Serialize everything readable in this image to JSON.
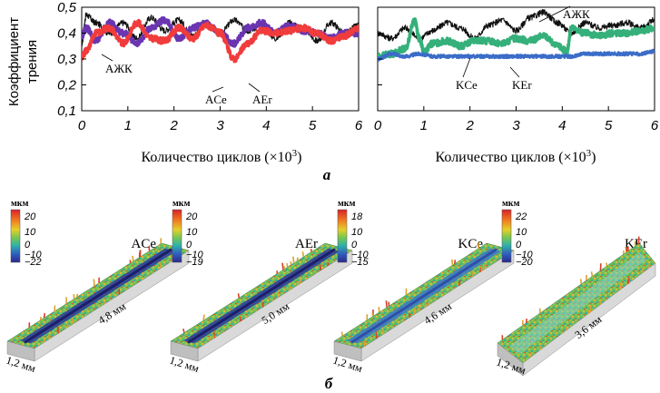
{
  "panel_a": {
    "label": "а",
    "ylabel_line1": "Коэффициент",
    "ylabel_line2": "трения",
    "xlabel": "Количество циклов (×10",
    "xlabel_sup": "3",
    "xlabel_end": ")",
    "colors": {
      "black": "#111111",
      "purple": "#6a35b0",
      "red": "#f03c3c",
      "green": "#35b07a",
      "blue": "#3a6cc8"
    }
  },
  "panel_b": {
    "label": "б",
    "maps": [
      {
        "name": "ACe",
        "unit": "мкм",
        "ticks": [
          "20",
          "10",
          "0",
          "−10",
          "−22"
        ],
        "width_label": "1,2 мм",
        "length_label": "4,8 мм",
        "track": "deep"
      },
      {
        "name": "AEr",
        "unit": "мкм",
        "ticks": [
          "20",
          "10",
          "0",
          "−10",
          "−19"
        ],
        "width_label": "1,2 мм",
        "length_label": "5,0 мм",
        "track": "deep"
      },
      {
        "name": "KCe",
        "unit": "мкм",
        "ticks": [
          "18",
          "10",
          "0",
          "−10",
          "−15"
        ],
        "width_label": "1,2 мм",
        "length_label": "4,6 мм",
        "track": "medium"
      },
      {
        "name": "KEr",
        "unit": "мкм",
        "ticks": [
          "22",
          "10",
          "0",
          "−10",
          "−20"
        ],
        "width_label": "1,2 мм",
        "length_label": "3,6 мм",
        "track": "shallow"
      }
    ]
  },
  "chart_data": [
    {
      "type": "line",
      "ylabel": "Коэффициент трения",
      "xlabel": "Количество циклов (×10^3)",
      "xlim": [
        0,
        6
      ],
      "ylim": [
        0.1,
        0.5
      ],
      "xticks": [
        "0",
        "1",
        "2",
        "3",
        "4",
        "5",
        "6"
      ],
      "yticks": [
        "0,1",
        "0,2",
        "0,3",
        "0,4",
        "0,5"
      ],
      "annotations": [
        "АЖК",
        "ACe",
        "AEr"
      ],
      "series": [
        {
          "name": "АЖК",
          "color": "#111111",
          "x": [
            0,
            0.1,
            0.3,
            0.6,
            0.9,
            1.2,
            1.5,
            1.8,
            2.1,
            2.4,
            2.7,
            3.0,
            3.3,
            3.6,
            3.9,
            4.2,
            4.5,
            4.8,
            5.1,
            5.4,
            5.7,
            6.0
          ],
          "y": [
            0.36,
            0.47,
            0.44,
            0.4,
            0.44,
            0.38,
            0.46,
            0.41,
            0.45,
            0.39,
            0.44,
            0.4,
            0.45,
            0.41,
            0.43,
            0.38,
            0.44,
            0.42,
            0.37,
            0.44,
            0.4,
            0.43
          ]
        },
        {
          "name": "ACe",
          "color": "#6a35b0",
          "x": [
            0,
            0.1,
            0.3,
            0.6,
            0.9,
            1.2,
            1.5,
            1.8,
            2.1,
            2.4,
            2.7,
            3.0,
            3.3,
            3.6,
            3.9,
            4.2,
            4.5,
            4.8,
            5.1,
            5.4,
            5.7,
            6.0
          ],
          "y": [
            0.39,
            0.42,
            0.37,
            0.44,
            0.4,
            0.36,
            0.42,
            0.45,
            0.38,
            0.42,
            0.44,
            0.4,
            0.36,
            0.42,
            0.44,
            0.4,
            0.43,
            0.41,
            0.4,
            0.38,
            0.4,
            0.4
          ]
        },
        {
          "name": "AEr",
          "color": "#f03c3c",
          "x": [
            0,
            0.1,
            0.3,
            0.6,
            0.9,
            1.2,
            1.5,
            1.8,
            2.1,
            2.4,
            2.7,
            3.0,
            3.3,
            3.6,
            3.9,
            4.2,
            4.5,
            4.8,
            5.1,
            5.4,
            5.7,
            6.0
          ],
          "y": [
            0.31,
            0.33,
            0.4,
            0.42,
            0.36,
            0.44,
            0.38,
            0.37,
            0.42,
            0.38,
            0.43,
            0.4,
            0.3,
            0.36,
            0.41,
            0.4,
            0.41,
            0.42,
            0.4,
            0.37,
            0.39,
            0.42
          ]
        }
      ]
    },
    {
      "type": "line",
      "xlabel": "Количество циклов (×10^3)",
      "xlim": [
        0,
        6
      ],
      "ylim": [
        0.1,
        0.5
      ],
      "xticks": [
        "0",
        "1",
        "2",
        "3",
        "4",
        "5",
        "6"
      ],
      "annotations": [
        "АЖК",
        "KCe",
        "KEr"
      ],
      "series": [
        {
          "name": "АЖК",
          "color": "#111111",
          "x": [
            0,
            0.3,
            0.6,
            0.9,
            1.2,
            1.5,
            1.8,
            2.1,
            2.4,
            2.7,
            3.0,
            3.3,
            3.6,
            3.9,
            4.2,
            4.5,
            4.8,
            5.1,
            5.4,
            5.7,
            6.0
          ],
          "y": [
            0.4,
            0.38,
            0.42,
            0.38,
            0.41,
            0.44,
            0.42,
            0.38,
            0.43,
            0.45,
            0.41,
            0.46,
            0.48,
            0.44,
            0.4,
            0.44,
            0.42,
            0.43,
            0.44,
            0.42,
            0.45
          ]
        },
        {
          "name": "KCe",
          "color": "#35b07a",
          "x": [
            0,
            0.3,
            0.6,
            0.8,
            0.9,
            1.0,
            1.2,
            1.5,
            1.8,
            2.1,
            2.4,
            2.7,
            3.0,
            3.3,
            3.6,
            3.9,
            4.1,
            4.2,
            4.5,
            4.8,
            5.1,
            5.4,
            5.7,
            6.0
          ],
          "y": [
            0.31,
            0.32,
            0.34,
            0.45,
            0.38,
            0.33,
            0.36,
            0.37,
            0.35,
            0.37,
            0.37,
            0.36,
            0.38,
            0.37,
            0.39,
            0.35,
            0.33,
            0.42,
            0.4,
            0.39,
            0.4,
            0.4,
            0.41,
            0.42
          ]
        },
        {
          "name": "KEr",
          "color": "#3a6cc8",
          "x": [
            0,
            0.3,
            0.6,
            0.9,
            1.2,
            1.5,
            1.8,
            2.1,
            2.4,
            2.7,
            3.0,
            3.3,
            3.6,
            3.9,
            4.2,
            4.5,
            4.8,
            5.1,
            5.4,
            5.7,
            6.0
          ],
          "y": [
            0.3,
            0.32,
            0.31,
            0.32,
            0.31,
            0.31,
            0.31,
            0.31,
            0.31,
            0.31,
            0.31,
            0.31,
            0.31,
            0.31,
            0.31,
            0.32,
            0.32,
            0.32,
            0.32,
            0.32,
            0.33
          ]
        }
      ]
    }
  ]
}
